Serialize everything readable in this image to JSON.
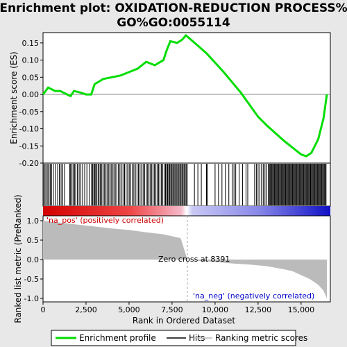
{
  "chart_data": {
    "type": "line",
    "title_line1": "Enrichment plot: OXIDATION-REDUCTION PROCESS%",
    "title_line2": "GO%GO:0055114",
    "es_panel": {
      "ylabel": "Enrichment score (ES)",
      "ylim": [
        -0.2,
        0.18
      ],
      "yticks": [
        "0.15",
        "0.10",
        "0.05",
        "0.00",
        "-0.05",
        "-0.10",
        "-0.15",
        "-0.20"
      ],
      "ytick_values": [
        0.15,
        0.1,
        0.05,
        0.0,
        -0.05,
        -0.1,
        -0.15,
        -0.2
      ],
      "series": [
        {
          "name": "Enrichment profile",
          "color": "#00dd00",
          "x": [
            0,
            300,
            700,
            1000,
            1400,
            1600,
            1800,
            2200,
            2500,
            2800,
            3000,
            3500,
            4000,
            4500,
            5000,
            5500,
            6000,
            6500,
            7000,
            7200,
            7400,
            7800,
            8100,
            8300,
            8700,
            9500,
            10500,
            11500,
            12500,
            13000,
            14000,
            14500,
            15000,
            15300,
            15600,
            16000,
            16300,
            16500
          ],
          "y": [
            0.0,
            0.02,
            0.01,
            0.01,
            0.0,
            -0.005,
            0.01,
            0.005,
            0.0,
            0.0,
            0.03,
            0.045,
            0.05,
            0.055,
            0.065,
            0.075,
            0.095,
            0.085,
            0.1,
            0.13,
            0.155,
            0.15,
            0.16,
            0.172,
            0.155,
            0.12,
            0.065,
            0.005,
            -0.065,
            -0.09,
            -0.135,
            -0.155,
            -0.175,
            -0.18,
            -0.17,
            -0.13,
            -0.07,
            0.0
          ]
        }
      ]
    },
    "hits_panel": {
      "hit_positions": [
        50,
        120,
        200,
        280,
        350,
        420,
        500,
        600,
        720,
        850,
        950,
        1050,
        1150,
        1250,
        1550,
        1600,
        1680,
        1750,
        1830,
        1900,
        2000,
        2100,
        2200,
        2300,
        2420,
        2550,
        2700,
        2820,
        2880,
        2950,
        3000,
        3060,
        3120,
        3200,
        3260,
        3330,
        3400,
        3480,
        3560,
        3640,
        3720,
        3800,
        3880,
        3960,
        4040,
        4120,
        4200,
        4290,
        4380,
        4470,
        4560,
        4650,
        4740,
        4830,
        4920,
        5010,
        5100,
        5190,
        5280,
        5370,
        5460,
        5550,
        5640,
        5730,
        5820,
        5910,
        6000,
        6080,
        6160,
        6240,
        6320,
        6400,
        6480,
        6560,
        6640,
        6720,
        6800,
        6880,
        6960,
        7040,
        7120,
        7180,
        7240,
        7300,
        7360,
        7420,
        7480,
        7540,
        7600,
        7660,
        7720,
        7780,
        7840,
        7900,
        7960,
        8020,
        8080,
        8140,
        8200,
        8260,
        8320,
        8380,
        8800,
        9000,
        9200,
        9500,
        9550,
        10000,
        10200,
        10400,
        10600,
        10800,
        11000,
        11100,
        11200,
        11400,
        11600,
        11800,
        11900,
        12300,
        12400,
        12500,
        12600,
        12700,
        12800,
        12900,
        13000,
        13100,
        13150,
        13200,
        13250,
        13300,
        13350,
        13400,
        13450,
        13500,
        13550,
        13600,
        13650,
        13700,
        13750,
        13800,
        13850,
        13900,
        13950,
        14000,
        14050,
        14100,
        14150,
        14200,
        14250,
        14300,
        14350,
        14400,
        14450,
        14500,
        14550,
        14600,
        14650,
        14700,
        14750,
        14800,
        14850,
        14900,
        14950,
        15000,
        15050,
        15100,
        15150,
        15200,
        15250,
        15300,
        15350,
        15400,
        15450,
        15500,
        15550,
        15600,
        15650,
        15700,
        15750,
        15800,
        15850,
        15900,
        15950,
        16000,
        16050,
        16100,
        16150,
        16200,
        16250,
        16300,
        16350,
        16400,
        16450
      ]
    },
    "metric_panel": {
      "ylabel": "Ranked list metric (PreRanked)",
      "ylim": [
        -1.0,
        1.0
      ],
      "yticks": [
        "1.0",
        "0.5",
        "0.0",
        "-0.5",
        "-1.0"
      ],
      "ytick_values": [
        1.0,
        0.5,
        0.0,
        -0.5,
        -1.0
      ],
      "x": [
        0,
        1000,
        2000,
        3000,
        4000,
        5000,
        6000,
        7000,
        7500,
        8000,
        8391,
        9000,
        10000,
        11000,
        12000,
        13000,
        14000,
        14500,
        15000,
        15500,
        16000,
        16300,
        16500
      ],
      "y": [
        1.0,
        0.95,
        0.9,
        0.85,
        0.8,
        0.76,
        0.7,
        0.65,
        0.6,
        0.55,
        0.0,
        -0.03,
        -0.06,
        -0.1,
        -0.13,
        -0.17,
        -0.25,
        -0.3,
        -0.4,
        -0.5,
        -0.65,
        -0.8,
        -1.0
      ],
      "zero_cross_label": "Zero cross at 8391",
      "zero_cross_x": 8391,
      "pos_label": "'na_pos' (positively correlated)",
      "neg_label": "'na_neg' (negatively correlated)"
    },
    "xaxis": {
      "xlabel": "Rank in Ordered Dataset",
      "xlim": [
        0,
        16700
      ],
      "xticks": [
        "0",
        "2,500",
        "5,000",
        "7,500",
        "10,000",
        "12,500",
        "15,000"
      ],
      "xtick_values": [
        0,
        2500,
        5000,
        7500,
        10000,
        12500,
        15000
      ]
    },
    "legend": {
      "placement": "bottom",
      "items": [
        {
          "label": "Enrichment profile",
          "color": "#00dd00"
        },
        {
          "label": "Hits",
          "color": "#000000"
        },
        {
          "label": "Ranking metric scores",
          "color": "#bbbbbb"
        }
      ]
    }
  }
}
